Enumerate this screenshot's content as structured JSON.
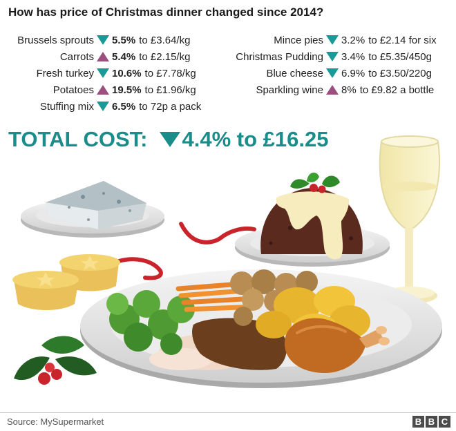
{
  "title": "How has price of Christmas dinner changed since 2014?",
  "colors": {
    "down": "#1a9a96",
    "up": "#9a4f7e",
    "total": "#1a8d8a"
  },
  "items_left": [
    {
      "name": "Brussels sprouts",
      "direction": "down",
      "change": "5.5%",
      "rest": "to £3.64/kg"
    },
    {
      "name": "Carrots",
      "direction": "up",
      "change": "5.4%",
      "rest": "to £2.15/kg"
    },
    {
      "name": "Fresh turkey",
      "direction": "down",
      "change": "10.6%",
      "rest": "to £7.78/kg"
    },
    {
      "name": "Potatoes",
      "direction": "up",
      "change": "19.5%",
      "rest": "to £1.96/kg"
    },
    {
      "name": "Stuffing mix",
      "direction": "down",
      "change": "6.5%",
      "rest": "to 72p a pack"
    }
  ],
  "items_right": [
    {
      "name": "Mince pies",
      "direction": "down",
      "change": "3.2%",
      "rest": "to £2.14 for six"
    },
    {
      "name": "Christmas Pudding",
      "direction": "down",
      "change": "3.4%",
      "rest": "to £5.35/450g"
    },
    {
      "name": "Blue cheese",
      "direction": "down",
      "change": "6.9%",
      "rest": "to £3.50/220g"
    },
    {
      "name": "Sparkling wine",
      "direction": "up",
      "change": "8%",
      "rest": "to £9.82 a bottle"
    }
  ],
  "total": {
    "label": "TOTAL COST:",
    "direction": "down",
    "value": "4.4% to £16.25"
  },
  "footer": {
    "source": "Source: MySupermarket",
    "logo": [
      "B",
      "B",
      "C"
    ]
  }
}
